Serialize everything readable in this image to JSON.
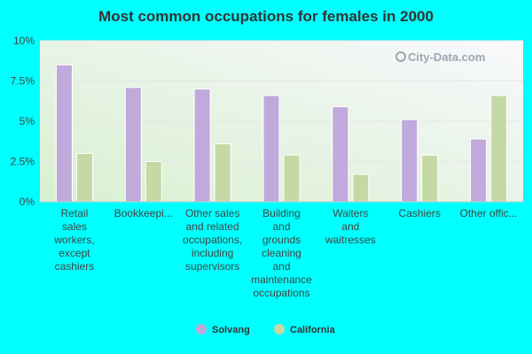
{
  "chart_data": {
    "type": "bar",
    "title": "Most common occupations for females in 2000",
    "xlabel": "",
    "ylabel": "",
    "ylim": [
      0,
      10
    ],
    "yticks": [
      "0%",
      "2.5%",
      "5%",
      "7.5%",
      "10%"
    ],
    "grid": true,
    "legend_position": "bottom",
    "watermark": "City-Data.com",
    "categories": [
      [
        "Retail",
        "sales",
        "workers,",
        "except",
        "cashiers"
      ],
      [
        "Bookkeepi..."
      ],
      [
        "Other sales",
        "and related",
        "occupations,",
        "including",
        "supervisors"
      ],
      [
        "Building",
        "and",
        "grounds",
        "cleaning",
        "and",
        "maintenance",
        "occupations"
      ],
      [
        "Waiters",
        "and",
        "waitresses"
      ],
      [
        "Cashiers"
      ],
      [
        "Other offic..."
      ]
    ],
    "series": [
      {
        "name": "Solvang",
        "color": "#c0a9db",
        "values": [
          8.5,
          7.1,
          7.0,
          6.6,
          5.9,
          5.1,
          3.9
        ]
      },
      {
        "name": "California",
        "color": "#c5d9a6",
        "values": [
          3.0,
          2.5,
          3.6,
          2.9,
          1.7,
          2.9,
          6.6
        ]
      }
    ]
  }
}
